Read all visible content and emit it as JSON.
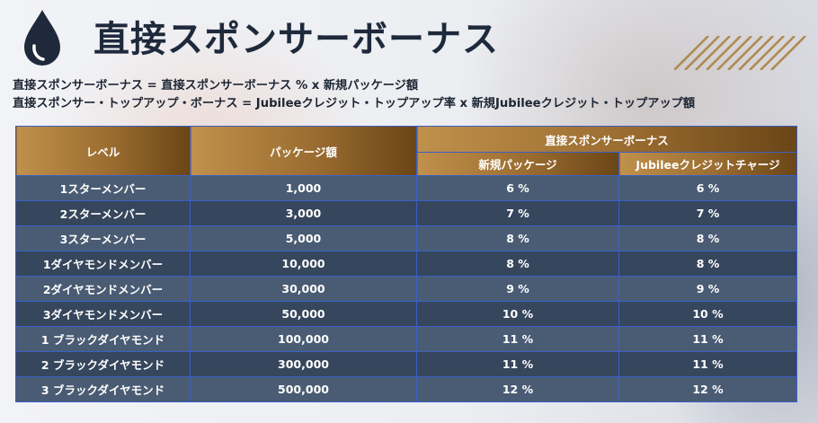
{
  "page_title": "直接スポンサーボーナス",
  "formulas": [
    "直接スポンサーボーナス = 直接スポンサーボーナス % x 新規パッケージ額",
    "直接スポンサー・トップアップ・ボーナス = Jubileeクレジット・トップアップ率 x 新規Jubileeクレジット・トップアップ額"
  ],
  "table": {
    "headers": {
      "level": "レベル",
      "package_amount": "パッケージ額",
      "bonus_group": "直接スポンサーボーナス",
      "new_package": "新規パッケージ",
      "jubilee_charge": "Jubileeクレジットチャージ"
    },
    "rows": [
      {
        "level": "1スターメンバー",
        "amount": "1,000",
        "new_package": "6 %",
        "jubilee": "6 %"
      },
      {
        "level": "2スターメンバー",
        "amount": "3,000",
        "new_package": "7 %",
        "jubilee": "7 %"
      },
      {
        "level": "3スターメンバー",
        "amount": "5,000",
        "new_package": "8 %",
        "jubilee": "8 %"
      },
      {
        "level": "1ダイヤモンドメンバー",
        "amount": "10,000",
        "new_package": "8 %",
        "jubilee": "8 %"
      },
      {
        "level": "2ダイヤモンドメンバー",
        "amount": "30,000",
        "new_package": "9 %",
        "jubilee": "9 %"
      },
      {
        "level": "3ダイヤモンドメンバー",
        "amount": "50,000",
        "new_package": "10 %",
        "jubilee": "10 %"
      },
      {
        "level": "1 ブラックダイヤモンド",
        "amount": "100,000",
        "new_package": "11 %",
        "jubilee": "11 %"
      },
      {
        "level": "2 ブラックダイヤモンド",
        "amount": "300,000",
        "new_package": "11 %",
        "jubilee": "11 %"
      },
      {
        "level": "3 ブラックダイヤモンド",
        "amount": "500,000",
        "new_package": "12 %",
        "jubilee": "12 %"
      }
    ]
  },
  "icons": {
    "logo": "water-drop-icon",
    "decoration": "diagonal-stripes-icon"
  },
  "colors": {
    "title": "#1e2a3c",
    "header_gold": "#c0914b",
    "header_brown": "#6a4516",
    "row_light": "#4a5c73",
    "row_dark": "#36465c",
    "grid_line": "#3a5fc8"
  }
}
